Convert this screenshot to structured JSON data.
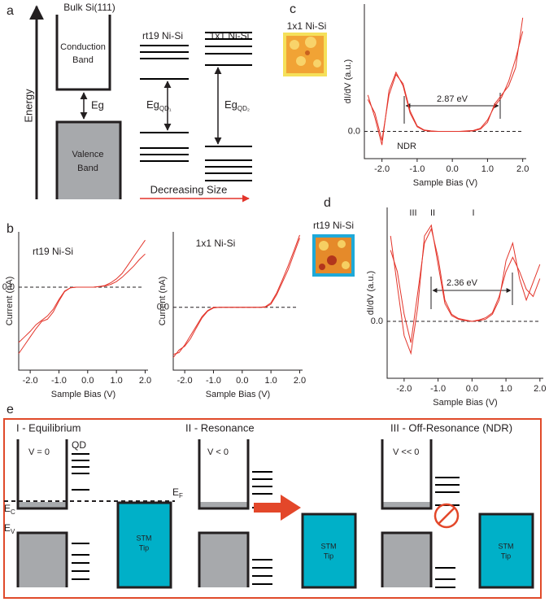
{
  "panel_labels": [
    "a",
    "b",
    "c",
    "d",
    "e"
  ],
  "panel_a": {
    "energy": "Energy",
    "bulk_title": "Bulk Si(111)",
    "conduction": [
      "Conduction",
      "Band"
    ],
    "valence": [
      "Valence",
      "Band"
    ],
    "gap": "Eg",
    "rt19_title": "rt19 Ni-Si",
    "onexone_title": "1x1 Ni-Si",
    "gap_qd1": {
      "main": "Eg",
      "sub": "QD₁"
    },
    "gap_qd2": {
      "main": "Eg",
      "sub": "QD₂"
    },
    "size_arrow": "Decreasing Size"
  },
  "panel_c": {
    "image_label": "1x1 Ni-Si"
  },
  "panel_d": {
    "image_label": "rt19 Ni-Si"
  },
  "chart_data": [
    {
      "type": "line",
      "title": "rt19 Ni-Si",
      "x_label": "Sample Bias (V)",
      "y_label": "Current (nA)",
      "x": [
        -2.4,
        -2.2,
        -2.0,
        -1.8,
        -1.6,
        -1.4,
        -1.2,
        -1.0,
        -0.8,
        -0.6,
        -0.4,
        -0.2,
        0.0,
        0.2,
        0.4,
        0.6,
        0.8,
        1.0,
        1.2,
        1.4,
        1.6,
        1.8,
        2.0
      ],
      "series": [
        {
          "color": "#e3342a",
          "values": [
            -1.2,
            -1.05,
            -0.9,
            -0.75,
            -0.62,
            -0.58,
            -0.45,
            -0.25,
            -0.08,
            -0.01,
            0,
            0,
            0,
            0,
            0.01,
            0.03,
            0.08,
            0.15,
            0.25,
            0.4,
            0.55,
            0.7,
            0.85
          ]
        },
        {
          "color": "#e3342a",
          "values": [
            -1.0,
            -0.9,
            -0.8,
            -0.68,
            -0.6,
            -0.52,
            -0.4,
            -0.22,
            -0.07,
            -0.01,
            0,
            0,
            0,
            0,
            0.01,
            0.02,
            0.05,
            0.1,
            0.18,
            0.28,
            0.38,
            0.5,
            0.6
          ]
        }
      ],
      "xlim": [
        -2.4,
        2.1
      ],
      "ylim": [
        -1.5,
        1.0
      ],
      "xticks": [
        {
          "value": -2,
          "label": "-2.0"
        },
        {
          "value": -1,
          "label": "-1.0"
        },
        {
          "value": 0,
          "label": "0.0"
        },
        {
          "value": 1,
          "label": "1.0"
        },
        {
          "value": 2,
          "label": "2.0"
        }
      ],
      "yticks": [
        {
          "value": 0,
          "label": "0.0"
        }
      ]
    },
    {
      "type": "line",
      "title": "1x1 Ni-Si",
      "x_label": "Sample Bias (V)",
      "y_label": "Current (nA)",
      "x": [
        -2.4,
        -2.2,
        -2.0,
        -1.8,
        -1.6,
        -1.4,
        -1.2,
        -1.0,
        -0.8,
        -0.6,
        -0.4,
        -0.2,
        0.0,
        0.2,
        0.4,
        0.6,
        0.8,
        1.0,
        1.2,
        1.4,
        1.6,
        1.8,
        2.0
      ],
      "series": [
        {
          "color": "#e3342a",
          "values": [
            -0.75,
            -0.72,
            -0.6,
            -0.45,
            -0.3,
            -0.15,
            -0.05,
            0,
            0,
            0,
            0,
            0,
            0,
            0,
            0,
            0,
            0,
            0.05,
            0.2,
            0.4,
            0.6,
            0.85,
            1.1
          ]
        },
        {
          "color": "#e3342a",
          "values": [
            -0.8,
            -0.68,
            -0.62,
            -0.5,
            -0.33,
            -0.17,
            -0.06,
            -0.01,
            0,
            0,
            0,
            0,
            0,
            0,
            0,
            0,
            0.01,
            0.07,
            0.23,
            0.44,
            0.66,
            0.9,
            1.15
          ]
        }
      ],
      "xlim": [
        -2.4,
        2.1
      ],
      "ylim": [
        -1.0,
        1.2
      ],
      "xticks": [
        {
          "value": -2,
          "label": "-2.0"
        },
        {
          "value": -1,
          "label": "-1.0"
        },
        {
          "value": 0,
          "label": "0.0"
        },
        {
          "value": 1,
          "label": "1.0"
        },
        {
          "value": 2,
          "label": "2.0"
        }
      ],
      "yticks": [
        {
          "value": 0,
          "label": "0.0"
        }
      ]
    },
    {
      "type": "line",
      "x_label": "Sample Bias (V)",
      "y_label": "dI/dV (a.u.)",
      "annotations": [
        "2.87 eV",
        "NDR"
      ],
      "x": [
        -2.4,
        -2.2,
        -2.0,
        -1.8,
        -1.6,
        -1.4,
        -1.2,
        -1.0,
        -0.8,
        -0.6,
        -0.4,
        -0.2,
        0.0,
        0.2,
        0.4,
        0.6,
        0.8,
        1.0,
        1.2,
        1.4,
        1.6,
        1.8,
        2.0
      ],
      "series": [
        {
          "color": "#e3342a",
          "values": [
            0.8,
            0.3,
            -0.3,
            0.9,
            1.3,
            1.0,
            0.4,
            0.1,
            0.02,
            0,
            0,
            0,
            0,
            0,
            0,
            0.01,
            0.05,
            0.2,
            0.6,
            0.8,
            1.0,
            1.4,
            2.5
          ]
        },
        {
          "color": "#e3342a",
          "values": [
            0.7,
            0.4,
            -0.2,
            0.8,
            1.25,
            1.05,
            0.45,
            0.12,
            0.03,
            0.01,
            0,
            0,
            0,
            0,
            0.01,
            0.02,
            0.07,
            0.25,
            0.55,
            0.75,
            1.1,
            1.6,
            2.2
          ]
        }
      ],
      "xlim": [
        -2.5,
        2.1
      ],
      "ylim": [
        -0.6,
        2.8
      ],
      "xticks": [
        {
          "value": -2,
          "label": "-2.0"
        },
        {
          "value": -1,
          "label": "-1.0"
        },
        {
          "value": 0,
          "label": "0.0"
        },
        {
          "value": 1,
          "label": "1.0"
        },
        {
          "value": 2,
          "label": "2.0"
        }
      ],
      "yticks": [
        {
          "value": 0,
          "label": "0.0"
        }
      ]
    },
    {
      "type": "line",
      "x_label": "Sample Bias (V)",
      "y_label": "dI/dV (a.u.)",
      "annotations": [
        "III",
        "II",
        "I",
        "2.36 eV"
      ],
      "x": [
        -2.4,
        -2.2,
        -2.0,
        -1.8,
        -1.6,
        -1.4,
        -1.2,
        -1.0,
        -0.8,
        -0.6,
        -0.4,
        -0.2,
        0.0,
        0.2,
        0.4,
        0.6,
        0.8,
        1.0,
        1.2,
        1.4,
        1.6,
        1.8,
        2.0
      ],
      "series": [
        {
          "color": "#e3342a",
          "values": [
            1.2,
            0.5,
            -0.2,
            -0.45,
            0.2,
            1.2,
            1.35,
            0.8,
            0.25,
            0.08,
            0.03,
            0.01,
            0,
            0.01,
            0.03,
            0.1,
            0.3,
            0.85,
            1.1,
            0.6,
            0.3,
            0.55,
            0.8
          ]
        },
        {
          "color": "#e3342a",
          "values": [
            1.0,
            0.7,
            0.1,
            -0.3,
            0.4,
            1.1,
            1.3,
            0.9,
            0.3,
            0.1,
            0.04,
            0.02,
            0,
            0.02,
            0.05,
            0.12,
            0.35,
            0.7,
            0.9,
            0.7,
            0.45,
            0.35,
            0.6
          ]
        }
      ],
      "xlim": [
        -2.5,
        2.1
      ],
      "ylim": [
        -0.8,
        1.6
      ],
      "xticks": [
        {
          "value": -2,
          "label": "-2.0"
        },
        {
          "value": -1,
          "label": "-1.0"
        },
        {
          "value": 0,
          "label": "0.0"
        },
        {
          "value": 1,
          "label": "1.0"
        },
        {
          "value": 2,
          "label": "2.0"
        }
      ],
      "yticks": [
        {
          "value": 0,
          "label": "0.0"
        }
      ]
    }
  ],
  "panel_e": {
    "stages": [
      {
        "title": "I - Equilibrium",
        "bias": "V = 0"
      },
      {
        "title": "II - Resonance",
        "bias": "V < 0"
      },
      {
        "title": "III - Off-Resonance (NDR)",
        "bias": "V << 0"
      }
    ],
    "qd": "QD",
    "ef": {
      "main": "E",
      "sub": "F"
    },
    "ec": {
      "main": "E",
      "sub": "C"
    },
    "ev": {
      "main": "E",
      "sub": "V"
    },
    "tip": [
      "STM",
      "Tip"
    ]
  }
}
